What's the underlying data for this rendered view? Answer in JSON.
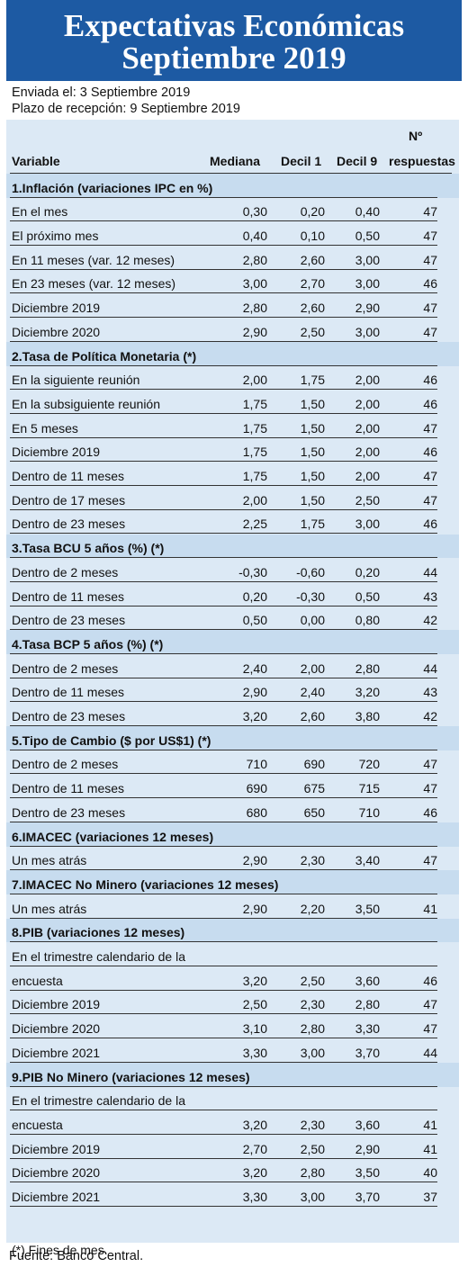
{
  "header": {
    "title_line1": "Expectativas Económicas",
    "title_line2": "Septiembre 2019"
  },
  "meta": {
    "sent": "Enviada el: 3 Septiembre 2019",
    "deadline": "Plazo de recepción: 9 Septiembre 2019"
  },
  "columns": {
    "variable": "Variable",
    "mediana": "Mediana",
    "decil1": "Decil 1",
    "decil9": "Decil 9",
    "n_top": "Nº",
    "n_bottom": "respuestas"
  },
  "rows": [
    {
      "type": "section",
      "label": "1.Inflación (variaciones IPC en %)"
    },
    {
      "label": "En el mes",
      "m": "0,30",
      "d1": "0,20",
      "d9": "0,40",
      "n": "47"
    },
    {
      "label": "El próximo mes",
      "m": "0,40",
      "d1": "0,10",
      "d9": "0,50",
      "n": "47"
    },
    {
      "label": "En 11 meses (var. 12 meses)",
      "m": "2,80",
      "d1": "2,60",
      "d9": "3,00",
      "n": "47"
    },
    {
      "label": "En 23 meses (var. 12 meses)",
      "m": "3,00",
      "d1": "2,70",
      "d9": "3,00",
      "n": "46"
    },
    {
      "label": "Diciembre 2019",
      "m": "2,80",
      "d1": "2,60",
      "d9": "2,90",
      "n": "47"
    },
    {
      "label": "Diciembre 2020",
      "m": "2,90",
      "d1": "2,50",
      "d9": "3,00",
      "n": "47"
    },
    {
      "type": "section",
      "label": "2.Tasa de Política Monetaria  (*)"
    },
    {
      "label": "En la siguiente reunión",
      "m": "2,00",
      "d1": "1,75",
      "d9": "2,00",
      "n": "46"
    },
    {
      "label": "En la subsiguiente reunión",
      "m": "1,75",
      "d1": "1,50",
      "d9": "2,00",
      "n": "46"
    },
    {
      "label": "En 5 meses",
      "m": "1,75",
      "d1": "1,50",
      "d9": "2,00",
      "n": "47"
    },
    {
      "label": "Diciembre 2019",
      "m": "1,75",
      "d1": "1,50",
      "d9": "2,00",
      "n": "46"
    },
    {
      "label": "Dentro de 11 meses",
      "m": "1,75",
      "d1": "1,50",
      "d9": "2,00",
      "n": "47"
    },
    {
      "label": "Dentro de 17 meses",
      "m": "2,00",
      "d1": "1,50",
      "d9": "2,50",
      "n": "47"
    },
    {
      "label": "Dentro de 23 meses",
      "m": "2,25",
      "d1": "1,75",
      "d9": "3,00",
      "n": "46"
    },
    {
      "type": "section",
      "label": "3.Tasa BCU 5 años  (%)  (*)"
    },
    {
      "label": "Dentro de 2 meses",
      "m": "-0,30",
      "d1": "-0,60",
      "d9": "0,20",
      "n": "44"
    },
    {
      "label": "Dentro de 11 meses",
      "m": "0,20",
      "d1": "-0,30",
      "d9": "0,50",
      "n": "43"
    },
    {
      "label": "Dentro de 23 meses",
      "m": "0,50",
      "d1": "0,00",
      "d9": "0,80",
      "n": "42"
    },
    {
      "type": "section",
      "label": "4.Tasa BCP 5 años  (%) (*)"
    },
    {
      "label": "Dentro de 2 meses",
      "m": "2,40",
      "d1": "2,00",
      "d9": "2,80",
      "n": "44"
    },
    {
      "label": "Dentro de 11 meses",
      "m": "2,90",
      "d1": "2,40",
      "d9": "3,20",
      "n": "43"
    },
    {
      "label": "Dentro de 23 meses",
      "m": "3,20",
      "d1": "2,60",
      "d9": "3,80",
      "n": "42"
    },
    {
      "type": "section",
      "label": "5.Tipo de Cambio  ($ por US$1) (*)"
    },
    {
      "label": "Dentro de 2 meses",
      "m": "710",
      "d1": "690",
      "d9": "720",
      "n": "47"
    },
    {
      "label": "Dentro de 11 meses",
      "m": "690",
      "d1": "675",
      "d9": "715",
      "n": "47"
    },
    {
      "label": "Dentro de 23 meses",
      "m": "680",
      "d1": "650",
      "d9": "710",
      "n": "46"
    },
    {
      "type": "section",
      "label": "6.IMACEC  (variaciones 12 meses)"
    },
    {
      "label": "Un mes atrás",
      "m": "2,90",
      "d1": "2,30",
      "d9": "3,40",
      "n": "47"
    },
    {
      "type": "section",
      "label": "7.IMACEC No Minero (variaciones 12 meses)"
    },
    {
      "label": "Un mes atrás",
      "m": "2,90",
      "d1": "2,20",
      "d9": "3,50",
      "n": "41"
    },
    {
      "type": "section",
      "label": "8.PIB  (variaciones 12 meses)"
    },
    {
      "label": "En el trimestre calendario de la",
      "m": "",
      "d1": "",
      "d9": "",
      "n": ""
    },
    {
      "label": "encuesta",
      "m": "3,20",
      "d1": "2,50",
      "d9": "3,60",
      "n": "46"
    },
    {
      "label": "Diciembre 2019",
      "m": "2,50",
      "d1": "2,30",
      "d9": "2,80",
      "n": "47"
    },
    {
      "label": "Diciembre 2020",
      "m": "3,10",
      "d1": "2,80",
      "d9": "3,30",
      "n": "47"
    },
    {
      "label": "Diciembre 2021",
      "m": "3,30",
      "d1": "3,00",
      "d9": "3,70",
      "n": "44"
    },
    {
      "type": "section",
      "label": "9.PIB No Minero (variaciones 12 meses)"
    },
    {
      "label": "En el trimestre calendario de la",
      "m": "",
      "d1": "",
      "d9": "",
      "n": ""
    },
    {
      "label": "encuesta",
      "m": "3,20",
      "d1": "2,30",
      "d9": "3,60",
      "n": "41"
    },
    {
      "label": "Diciembre 2019",
      "m": "2,70",
      "d1": "2,50",
      "d9": "2,90",
      "n": "41"
    },
    {
      "label": "Diciembre 2020",
      "m": "3,20",
      "d1": "2,80",
      "d9": "3,50",
      "n": "40"
    },
    {
      "label": "Diciembre 2021",
      "m": "3,30",
      "d1": "3,00",
      "d9": "3,70",
      "n": "37"
    }
  ],
  "footnote": "(*) Fines de mes.",
  "source": "Fuente: Banco Central."
}
